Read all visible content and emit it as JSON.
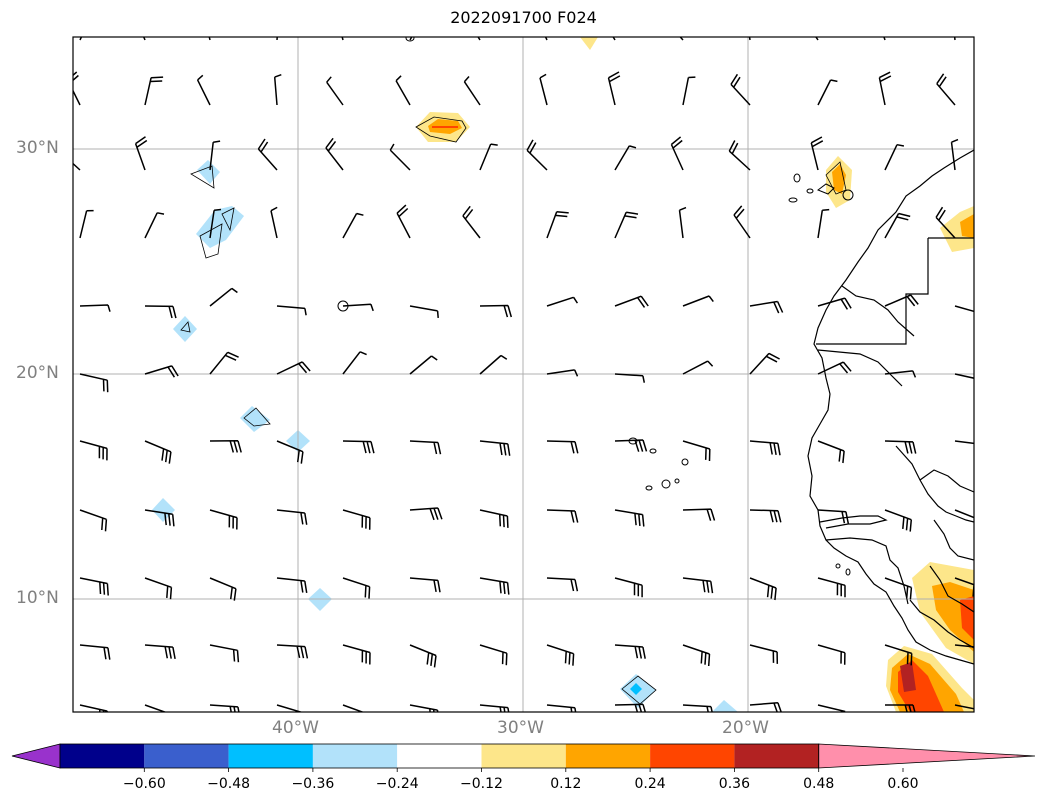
{
  "title": "2022091700 F024",
  "map": {
    "lat_labels": [
      "30°N",
      "20°N",
      "10°N"
    ],
    "lon_labels": [
      "40°W",
      "30°W",
      "20°W"
    ],
    "gridlines": true,
    "extent": {
      "lon_min": -50,
      "lon_max": -10,
      "lat_min": 5,
      "lat_max": 35
    }
  },
  "colorbar": {
    "ticks": [
      "−0.60",
      "−0.48",
      "−0.36",
      "−0.24",
      "−0.12",
      "0.12",
      "0.24",
      "0.36",
      "0.48",
      "0.60"
    ],
    "colors": [
      "#9932cc",
      "#00008b",
      "#3a5fcd",
      "#00bfff",
      "#b2e2fa",
      "#ffffff",
      "#fde68a",
      "#ffa500",
      "#ff4500",
      "#b22222",
      "#ff8fab"
    ]
  },
  "features": {
    "wind_barbs": "grid of wind barbs over eastern tropical Atlantic",
    "coastline_color": "#000000",
    "positive_anomaly_colors": [
      "#fde68a",
      "#ffa500",
      "#ff4500",
      "#b22222"
    ],
    "negative_anomaly_colors": [
      "#b2e2fa",
      "#00bfff"
    ]
  }
}
